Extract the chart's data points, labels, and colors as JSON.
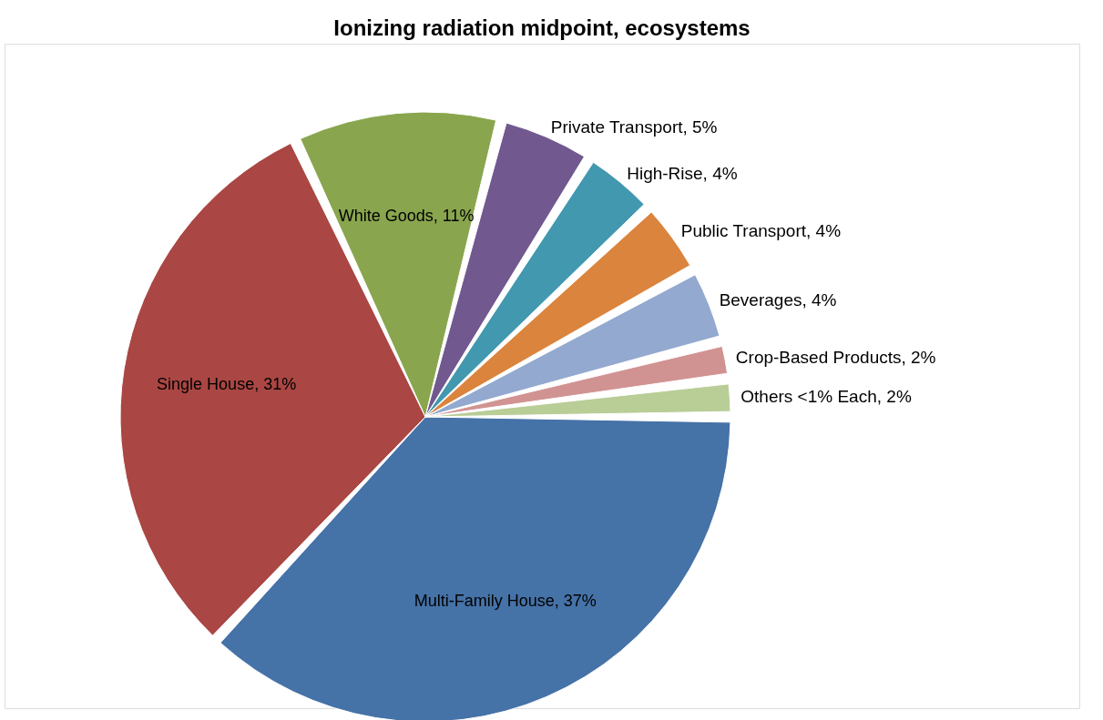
{
  "chart_data": {
    "type": "pie",
    "title": "Ionizing radiation midpoint, ecosystems",
    "categories": [
      "Multi-Family House",
      "Single House",
      "White Goods",
      "Private Transport",
      "High-Rise",
      "Public Transport",
      "Beverages",
      "Crop-Based Products",
      "Others <1% Each"
    ],
    "values": [
      37,
      31,
      11,
      5,
      4,
      4,
      4,
      2,
      2
    ],
    "colors": [
      "#4572a7",
      "#aa4643",
      "#89a54e",
      "#71588f",
      "#4198af",
      "#db843d",
      "#93a9cf",
      "#d19392",
      "#b9cd96"
    ],
    "value_labels": [
      "37%",
      "31%",
      "11%",
      "5%",
      "4%",
      "4%",
      "4%",
      "2%",
      "2%"
    ]
  }
}
